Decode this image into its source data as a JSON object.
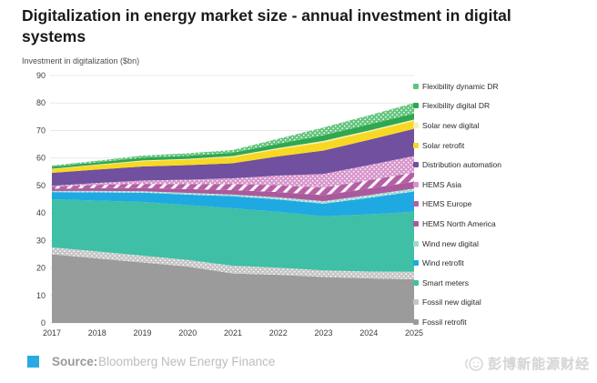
{
  "header": {
    "title": "Digitalization in energy market size - annual investment in digital systems"
  },
  "chart_data": {
    "type": "area",
    "stacked": true,
    "title": "Digitalization in energy market size - annual investment in digital systems",
    "ylabel": "Investment in digitalization ($bn)",
    "xlabel": "",
    "x": [
      2017,
      2018,
      2019,
      2020,
      2021,
      2022,
      2023,
      2024,
      2025
    ],
    "x_tick_labels": [
      "2017",
      "2018",
      "2019",
      "2020",
      "2021",
      "2022",
      "2023",
      "2024",
      "2025"
    ],
    "ylim": [
      0,
      90
    ],
    "y_ticks": [
      0,
      10,
      20,
      30,
      40,
      50,
      60,
      70,
      80,
      90
    ],
    "grid": true,
    "legend_position": "right",
    "series": [
      {
        "name": "Flexibility dynamic DR",
        "color": "#62c47c",
        "pattern": "dots",
        "values": [
          0.5,
          0.6,
          0.8,
          0.9,
          1.0,
          1.8,
          2.8,
          3.3,
          3.8
        ]
      },
      {
        "name": "Flexibility digital DR",
        "color": "#2fa84f",
        "pattern": null,
        "values": [
          0.7,
          0.8,
          1.0,
          1.1,
          1.2,
          1.6,
          2.1,
          2.2,
          2.2
        ]
      },
      {
        "name": "Solar new digital",
        "color": "#f6f0b8",
        "pattern": null,
        "values": [
          0.2,
          0.2,
          0.3,
          0.3,
          0.4,
          0.4,
          0.5,
          0.5,
          0.5
        ]
      },
      {
        "name": "Solar retrofit",
        "color": "#f8d822",
        "pattern": null,
        "values": [
          1.3,
          1.6,
          1.9,
          2.0,
          2.2,
          2.6,
          3.0,
          2.9,
          2.9
        ]
      },
      {
        "name": "Distribution automation",
        "color": "#70509f",
        "pattern": null,
        "values": [
          4.7,
          4.9,
          5.1,
          5.3,
          5.5,
          7.0,
          8.5,
          9.2,
          9.9
        ]
      },
      {
        "name": "HEMS Asia",
        "color": "#d795cb",
        "pattern": "dots",
        "values": [
          0.3,
          0.7,
          1.2,
          1.6,
          2.1,
          3.5,
          5.0,
          5.5,
          6.0
        ]
      },
      {
        "name": "HEMS Europe",
        "color": "#b55fa5",
        "pattern": "stripes",
        "values": [
          0.8,
          1.2,
          1.5,
          1.8,
          2.2,
          2.5,
          2.7,
          3.0,
          3.3
        ]
      },
      {
        "name": "HEMS North America",
        "color": "#aa5a9c",
        "pattern": null,
        "values": [
          0.8,
          1.0,
          1.2,
          1.4,
          1.6,
          1.9,
          2.2,
          2.4,
          2.5
        ]
      },
      {
        "name": "Wind new digital",
        "color": "#9fd8d2",
        "pattern": "dots",
        "values": [
          0.4,
          0.5,
          0.5,
          0.6,
          0.6,
          0.8,
          0.9,
          1.0,
          1.1
        ]
      },
      {
        "name": "Wind retrofit",
        "color": "#1fa9e3",
        "pattern": null,
        "values": [
          2.6,
          3.0,
          3.4,
          3.8,
          4.4,
          4.5,
          4.6,
          6.0,
          7.3
        ]
      },
      {
        "name": "Smart meters",
        "color": "#3fbfa5",
        "pattern": null,
        "values": [
          17.5,
          18.5,
          19.5,
          20.0,
          20.9,
          20.3,
          19.7,
          20.8,
          21.9
        ]
      },
      {
        "name": "Fossil new digital",
        "color": "#c6c5c5",
        "pattern": "dots",
        "values": [
          2.5,
          2.5,
          2.5,
          2.4,
          2.8,
          2.6,
          2.4,
          2.5,
          2.7
        ]
      },
      {
        "name": "Fossil retrofit",
        "color": "#9b9b9b",
        "pattern": null,
        "values": [
          25.0,
          23.5,
          22.0,
          20.5,
          18.0,
          17.5,
          16.7,
          16.2,
          15.9
        ]
      }
    ]
  },
  "colors": {
    "grid": "#e9e9e9",
    "tick_label": "#3c3c3c",
    "source_square": "#29abe2"
  },
  "footer": {
    "source_label": "Source:",
    "source_value": "Bloomberg New Energy Finance",
    "watermark": "彭博新能源财经"
  }
}
